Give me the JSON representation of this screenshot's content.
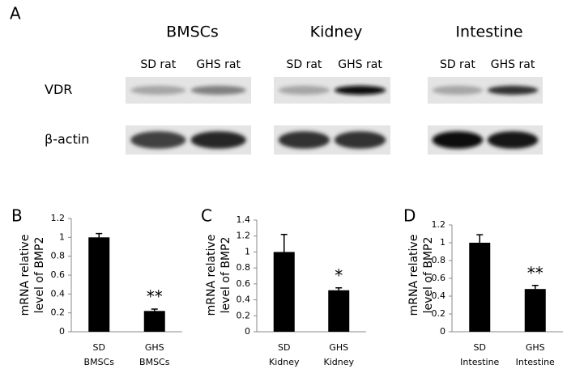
{
  "panel_a": {
    "letter": "A",
    "tissues": [
      "BMSCs",
      "Kidney",
      "Intestine"
    ],
    "lanes": [
      [
        "SD rat",
        "GHS rat"
      ],
      [
        "SD rat",
        "GHS rat"
      ],
      [
        "SD rat",
        "GHS rat"
      ]
    ],
    "rows": [
      "VDR",
      "β-actin"
    ]
  },
  "chart_data": [
    {
      "type": "bar",
      "letter": "B",
      "ylabel": [
        "mRNA relative",
        "level of BMP2"
      ],
      "categories": [
        [
          "SD",
          "BMSCs"
        ],
        [
          "GHS",
          "BMSCs"
        ]
      ],
      "values": [
        1.0,
        0.22
      ],
      "errors": [
        0.04,
        0.02
      ],
      "annotations": [
        {
          "category": 1,
          "text": "**"
        }
      ],
      "color": "#000000",
      "ylim": [
        0,
        1.2
      ],
      "yticks": [
        0,
        0.2,
        0.4,
        0.6,
        0.8,
        1,
        1.2
      ]
    },
    {
      "type": "bar",
      "letter": "C",
      "ylabel": [
        "mRNA relative",
        "level of BMP2"
      ],
      "categories": [
        [
          "SD",
          "Kidney"
        ],
        [
          "GHS",
          "Kidney"
        ]
      ],
      "values": [
        1.0,
        0.52
      ],
      "errors": [
        0.22,
        0.03
      ],
      "annotations": [
        {
          "category": 1,
          "text": "*"
        }
      ],
      "color": "#000000",
      "ylim": [
        0,
        1.4
      ],
      "yticks": [
        0,
        0.2,
        0.4,
        0.6,
        0.8,
        1,
        1.2,
        1.4
      ]
    },
    {
      "type": "bar",
      "letter": "D",
      "ylabel": [
        "mRNA relative",
        "level of BMP2"
      ],
      "categories": [
        [
          "SD",
          "Intestine"
        ],
        [
          "GHS",
          "Intestine"
        ]
      ],
      "values": [
        1.0,
        0.48
      ],
      "errors": [
        0.09,
        0.04
      ],
      "annotations": [
        {
          "category": 1,
          "text": "**"
        }
      ],
      "color": "#000000",
      "ylim": [
        0,
        1.2
      ],
      "yticks": [
        0,
        0.2,
        0.4,
        0.6,
        0.8,
        1,
        1.2
      ]
    }
  ]
}
